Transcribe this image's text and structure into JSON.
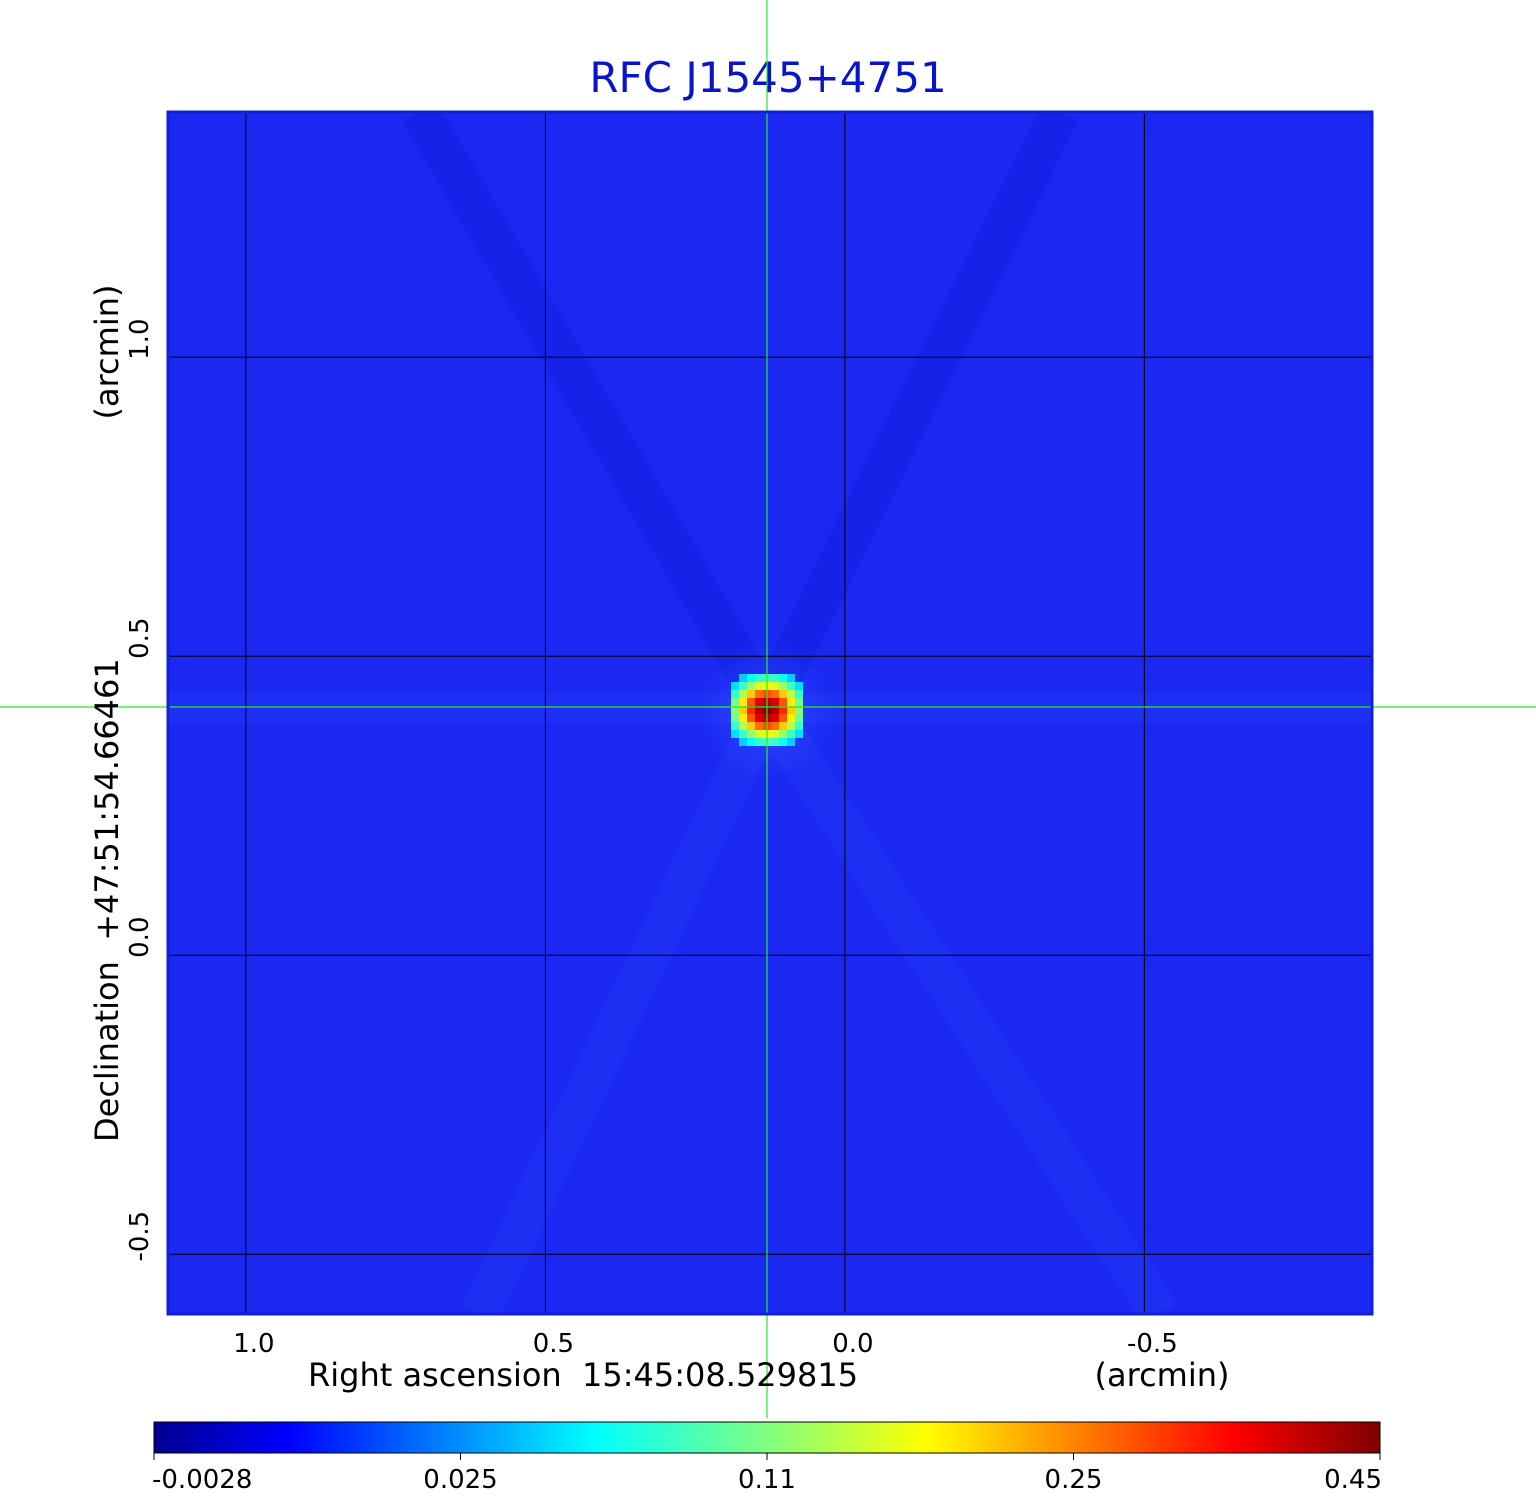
{
  "chart_data": {
    "type": "heatmap",
    "title": "RFC J1545+4751",
    "xlabel": "Right ascension  15:45:08.529815",
    "xunit": "(arcmin)",
    "ylabel": "Declination  +47:51:54.66461",
    "yunit": "(arcmin)",
    "xlim": [
      1.13,
      -0.88
    ],
    "ylim": [
      -0.6,
      1.41
    ],
    "x_ticks": [
      {
        "value": 1.0,
        "label": "1.0"
      },
      {
        "value": 0.5,
        "label": "0.5"
      },
      {
        "value": 0.0,
        "label": "0.0"
      },
      {
        "value": -0.5,
        "label": "-0.5"
      }
    ],
    "y_ticks": [
      {
        "value": 1.0,
        "label": "1.0"
      },
      {
        "value": 0.5,
        "label": "0.5"
      },
      {
        "value": 0.0,
        "label": "0.0"
      },
      {
        "value": -0.5,
        "label": "-0.5"
      }
    ],
    "grid": true,
    "source": {
      "x": 0.13,
      "y": 0.415,
      "peak": 0.45
    },
    "crosshair": {
      "x": 0.13,
      "y": 0.415
    },
    "colorscale": {
      "name": "jet",
      "min": -0.0028,
      "max": 0.45,
      "ticks": [
        {
          "value": -0.0028,
          "label": "-0.0028"
        },
        {
          "value": 0.025,
          "label": "0.025"
        },
        {
          "value": 0.11,
          "label": "0.11"
        },
        {
          "value": 0.25,
          "label": "0.25"
        },
        {
          "value": 0.45,
          "label": "0.45"
        }
      ]
    }
  },
  "colors": {
    "background": "#1a28f2",
    "frame": "#1020d8",
    "grid": "#000000",
    "crosshair": "#22ee22",
    "title": "#0a14c8"
  }
}
